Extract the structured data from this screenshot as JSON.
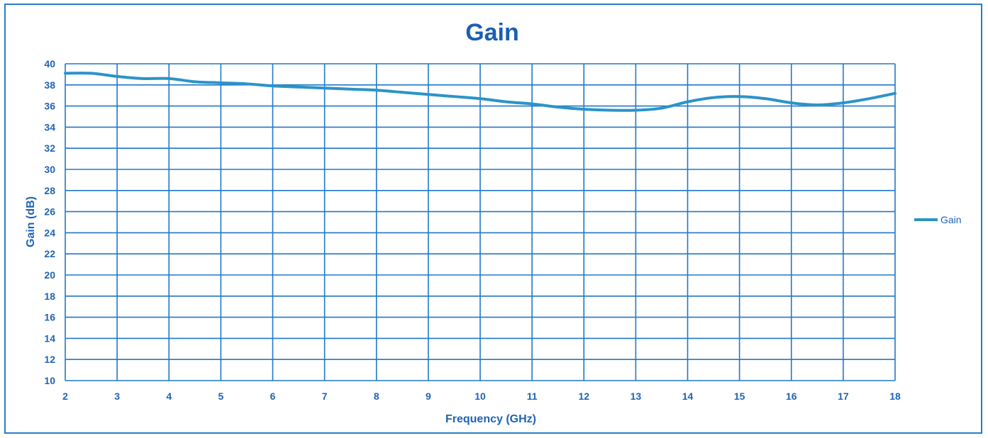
{
  "chart_data": {
    "type": "line",
    "title": "Gain",
    "xlabel": "Frequency (GHz)",
    "ylabel": "Gain (dB)",
    "xlim": [
      2,
      18
    ],
    "ylim": [
      10,
      40
    ],
    "x_ticks": [
      "2",
      "3",
      "4",
      "5",
      "6",
      "7",
      "8",
      "9",
      "10",
      "11",
      "12",
      "13",
      "14",
      "15",
      "16",
      "17",
      "18"
    ],
    "y_ticks": [
      "10",
      "12",
      "14",
      "16",
      "18",
      "20",
      "22",
      "24",
      "26",
      "28",
      "30",
      "32",
      "34",
      "36",
      "38",
      "40"
    ],
    "grid": true,
    "legend_position": "right",
    "series": [
      {
        "name": "Gain",
        "x": [
          2,
          2.5,
          3,
          3.5,
          4,
          4.5,
          5,
          5.5,
          6,
          6.5,
          7,
          7.5,
          8,
          8.5,
          9,
          9.5,
          10,
          10.5,
          11,
          11.5,
          12,
          12.5,
          13,
          13.5,
          14,
          14.5,
          15,
          15.5,
          16,
          16.5,
          17,
          17.5,
          18
        ],
        "y": [
          39.1,
          39.1,
          38.8,
          38.6,
          38.6,
          38.3,
          38.2,
          38.1,
          37.9,
          37.8,
          37.7,
          37.6,
          37.5,
          37.3,
          37.1,
          36.9,
          36.7,
          36.4,
          36.2,
          35.9,
          35.7,
          35.6,
          35.6,
          35.8,
          36.4,
          36.8,
          36.9,
          36.7,
          36.3,
          36.1,
          36.3,
          36.7,
          37.2
        ]
      }
    ]
  },
  "colors": {
    "grid": "#1f78c8",
    "axis_text": "#1f63b5",
    "title": "#1a5fb4",
    "series": "#2b93c9",
    "frame": "#2a7bc9"
  }
}
